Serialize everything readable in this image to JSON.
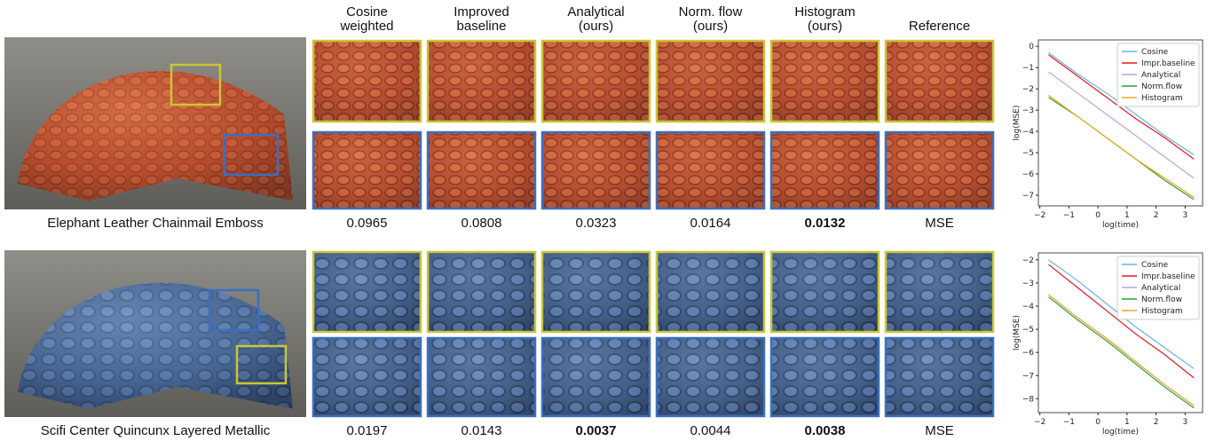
{
  "columns": [
    [
      "Cosine",
      "weighted"
    ],
    [
      "Improved",
      "baseline"
    ],
    [
      "Analytical",
      "(ours)"
    ],
    [
      "Norm. flow",
      "(ours)"
    ],
    [
      "Histogram",
      "(ours)"
    ],
    [
      "Reference"
    ]
  ],
  "rows": [
    {
      "label": "Elephant Leather Chainmail Emboss",
      "mse": [
        0.0965,
        0.0808,
        0.0323,
        0.0164,
        0.0132
      ],
      "best": [
        4
      ],
      "reference_label": "MSE"
    },
    {
      "label": "Scifi Center Quincunx Layered Metallic",
      "mse": [
        0.0197,
        0.0143,
        0.0037,
        0.0044,
        0.0038
      ],
      "best": [
        2,
        4
      ],
      "reference_label": "MSE"
    }
  ],
  "chart_data": [
    {
      "type": "line",
      "xlabel": "log(time)",
      "ylabel": "log(MSE)",
      "legend": "upper right",
      "x": [
        -1.7,
        -0.7,
        0.3,
        1.3,
        2.3,
        3.3
      ],
      "xlim": [
        -2.05,
        3.6
      ],
      "ylim": [
        -7.5,
        0.3
      ],
      "xticks": [
        {
          "value": -2,
          "label": "−2"
        },
        {
          "value": -1,
          "label": "−1"
        },
        0,
        1,
        2,
        3
      ],
      "yticks": [
        0,
        {
          "value": -1,
          "label": "−1"
        },
        {
          "value": -2,
          "label": "−2"
        },
        {
          "value": -3,
          "label": "−3"
        },
        {
          "value": -4,
          "label": "−4"
        },
        {
          "value": -5,
          "label": "−5"
        },
        {
          "value": -6,
          "label": "−6"
        },
        {
          "value": -7,
          "label": "−7"
        }
      ],
      "series": [
        {
          "name": "Cosine",
          "color": "#62b3ee",
          "values": [
            -0.3,
            -1.3,
            -2.2,
            -3.2,
            -4.2,
            -5.1
          ]
        },
        {
          "name": "Impr.baseline",
          "color": "#e3191c",
          "values": [
            -0.4,
            -1.4,
            -2.4,
            -3.4,
            -4.3,
            -5.3
          ]
        },
        {
          "name": "Analytical",
          "color": "#c49ee2",
          "values": [
            -1.2,
            -2.2,
            -3.2,
            -4.2,
            -5.2,
            -6.2
          ]
        },
        {
          "name": "Norm.flow",
          "color": "#2ca02c",
          "values": [
            -2.4,
            -3.3,
            -4.3,
            -5.3,
            -6.3,
            -7.2
          ]
        },
        {
          "name": "Histogram",
          "color": "#f5a623",
          "values": [
            -2.3,
            -3.3,
            -4.3,
            -5.3,
            -6.2,
            -7.1
          ]
        }
      ]
    },
    {
      "type": "line",
      "xlabel": "log(time)",
      "ylabel": "log(MSE)",
      "legend": "upper right",
      "x": [
        -1.7,
        -0.7,
        0.3,
        1.3,
        2.3,
        3.3
      ],
      "xlim": [
        -2.05,
        3.6
      ],
      "ylim": [
        -8.6,
        -1.7
      ],
      "xticks": [
        {
          "value": -2,
          "label": "−2"
        },
        {
          "value": -1,
          "label": "−1"
        },
        0,
        1,
        2,
        3
      ],
      "yticks": [
        {
          "value": -2,
          "label": "−2"
        },
        {
          "value": -3,
          "label": "−3"
        },
        {
          "value": -4,
          "label": "−4"
        },
        {
          "value": -5,
          "label": "−5"
        },
        {
          "value": -6,
          "label": "−6"
        },
        {
          "value": -7,
          "label": "−7"
        },
        {
          "value": -8,
          "label": "−8"
        }
      ],
      "series": [
        {
          "name": "Cosine",
          "color": "#62b3ee",
          "values": [
            -2.0,
            -2.9,
            -3.9,
            -4.9,
            -5.8,
            -6.7
          ]
        },
        {
          "name": "Impr.baseline",
          "color": "#e3191c",
          "values": [
            -2.2,
            -3.2,
            -4.2,
            -5.2,
            -6.1,
            -7.1
          ]
        },
        {
          "name": "Analytical",
          "color": "#c49ee2",
          "values": [
            -3.5,
            -4.5,
            -5.4,
            -6.4,
            -7.4,
            -8.3
          ]
        },
        {
          "name": "Norm.flow",
          "color": "#2ca02c",
          "values": [
            -3.6,
            -4.6,
            -5.5,
            -6.5,
            -7.5,
            -8.4
          ]
        },
        {
          "name": "Histogram",
          "color": "#f5a623",
          "values": [
            -3.5,
            -4.5,
            -5.4,
            -6.4,
            -7.4,
            -8.3
          ]
        }
      ]
    }
  ]
}
